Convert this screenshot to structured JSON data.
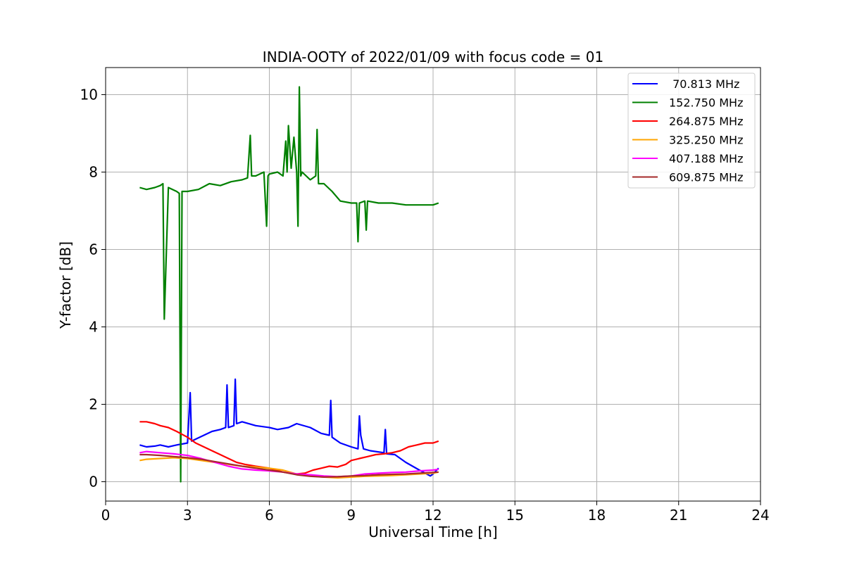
{
  "chart_data": {
    "type": "line",
    "title": "INDIA-OOTY of 2022/01/09 with focus code = 01",
    "xlabel": "Universal Time [h]",
    "ylabel": "Y-factor [dB]",
    "xlim": [
      0,
      24
    ],
    "ylim": [
      -0.5,
      10.7
    ],
    "xticks": [
      0,
      3,
      6,
      9,
      12,
      15,
      18,
      21,
      24
    ],
    "yticks": [
      0,
      2,
      4,
      6,
      8,
      10
    ],
    "grid": true,
    "legend_position": "top-right",
    "series": [
      {
        "name": " 70.813 MHz",
        "color": "#0000ff",
        "x": [
          1.25,
          1.5,
          1.8,
          2.0,
          2.3,
          2.6,
          3.0,
          3.1,
          3.15,
          3.3,
          3.6,
          3.9,
          4.2,
          4.4,
          4.45,
          4.5,
          4.7,
          4.75,
          4.8,
          5.0,
          5.5,
          6.0,
          6.3,
          6.7,
          7.0,
          7.5,
          7.9,
          8.2,
          8.25,
          8.3,
          8.6,
          9.0,
          9.25,
          9.3,
          9.35,
          9.45,
          9.7,
          10.2,
          10.25,
          10.3,
          10.6,
          11.0,
          11.5,
          11.9,
          12.0,
          12.2
        ],
        "y": [
          0.95,
          0.9,
          0.92,
          0.95,
          0.9,
          0.95,
          1.0,
          2.3,
          1.05,
          1.1,
          1.2,
          1.3,
          1.35,
          1.4,
          2.5,
          1.4,
          1.45,
          2.65,
          1.5,
          1.55,
          1.45,
          1.4,
          1.35,
          1.4,
          1.5,
          1.4,
          1.25,
          1.2,
          2.1,
          1.15,
          1.0,
          0.9,
          0.85,
          1.7,
          1.2,
          0.85,
          0.8,
          0.75,
          1.35,
          0.72,
          0.7,
          0.5,
          0.3,
          0.15,
          0.2,
          0.35
        ]
      },
      {
        "name": "152.750 MHz",
        "color": "#008000",
        "x": [
          1.25,
          1.5,
          1.8,
          2.0,
          2.1,
          2.15,
          2.3,
          2.6,
          2.7,
          2.75,
          2.8,
          3.0,
          3.4,
          3.8,
          4.2,
          4.6,
          5.0,
          5.2,
          5.3,
          5.35,
          5.5,
          5.8,
          5.9,
          5.95,
          6.0,
          6.3,
          6.5,
          6.6,
          6.65,
          6.7,
          6.8,
          6.9,
          7.0,
          7.05,
          7.1,
          7.15,
          7.2,
          7.5,
          7.7,
          7.75,
          7.8,
          8.0,
          8.3,
          8.6,
          9.0,
          9.2,
          9.25,
          9.3,
          9.5,
          9.55,
          9.6,
          10.0,
          10.5,
          11.0,
          11.5,
          12.0,
          12.2
        ],
        "y": [
          7.6,
          7.55,
          7.6,
          7.65,
          7.7,
          4.2,
          7.6,
          7.5,
          7.45,
          0.0,
          7.5,
          7.5,
          7.55,
          7.7,
          7.65,
          7.75,
          7.8,
          7.85,
          8.95,
          7.9,
          7.9,
          8.0,
          6.6,
          7.9,
          7.95,
          8.0,
          7.9,
          8.8,
          8.0,
          9.2,
          8.1,
          8.9,
          8.0,
          6.6,
          10.2,
          7.9,
          8.0,
          7.8,
          7.9,
          9.1,
          7.7,
          7.7,
          7.5,
          7.25,
          7.2,
          7.2,
          6.2,
          7.2,
          7.25,
          6.5,
          7.25,
          7.2,
          7.2,
          7.15,
          7.15,
          7.15,
          7.2
        ]
      },
      {
        "name": "264.875 MHz",
        "color": "#ff0000",
        "x": [
          1.25,
          1.5,
          1.8,
          2.0,
          2.3,
          2.6,
          3.0,
          3.3,
          3.6,
          3.9,
          4.2,
          4.5,
          4.8,
          5.1,
          5.5,
          6.0,
          6.5,
          7.0,
          7.3,
          7.6,
          7.9,
          8.2,
          8.5,
          8.8,
          9.0,
          9.3,
          9.6,
          9.9,
          10.2,
          10.5,
          10.8,
          11.1,
          11.4,
          11.7,
          12.0,
          12.2
        ],
        "y": [
          1.55,
          1.55,
          1.5,
          1.45,
          1.4,
          1.3,
          1.15,
          1.0,
          0.9,
          0.8,
          0.7,
          0.6,
          0.5,
          0.45,
          0.4,
          0.35,
          0.25,
          0.2,
          0.22,
          0.3,
          0.35,
          0.4,
          0.38,
          0.45,
          0.55,
          0.6,
          0.65,
          0.7,
          0.72,
          0.75,
          0.8,
          0.9,
          0.95,
          1.0,
          1.0,
          1.05
        ]
      },
      {
        "name": "325.250 MHz",
        "color": "#ffa500",
        "x": [
          1.25,
          1.5,
          2.0,
          2.5,
          3.0,
          3.5,
          4.0,
          4.5,
          5.0,
          5.5,
          6.0,
          6.5,
          7.0,
          7.5,
          8.0,
          8.5,
          9.0,
          9.5,
          10.0,
          10.5,
          11.0,
          11.5,
          12.0,
          12.2
        ],
        "y": [
          0.55,
          0.58,
          0.6,
          0.62,
          0.6,
          0.55,
          0.5,
          0.45,
          0.4,
          0.38,
          0.35,
          0.3,
          0.2,
          0.15,
          0.12,
          0.1,
          0.12,
          0.14,
          0.15,
          0.16,
          0.18,
          0.2,
          0.22,
          0.25
        ]
      },
      {
        "name": "407.188 MHz",
        "color": "#ff00ff",
        "x": [
          1.25,
          1.5,
          2.0,
          2.5,
          3.0,
          3.5,
          4.0,
          4.5,
          5.0,
          5.5,
          6.0,
          6.5,
          7.0,
          7.5,
          8.0,
          8.5,
          9.0,
          9.5,
          10.0,
          10.5,
          11.0,
          11.5,
          12.0,
          12.2
        ],
        "y": [
          0.75,
          0.78,
          0.75,
          0.72,
          0.68,
          0.6,
          0.5,
          0.4,
          0.33,
          0.3,
          0.28,
          0.25,
          0.2,
          0.18,
          0.15,
          0.13,
          0.15,
          0.2,
          0.22,
          0.24,
          0.25,
          0.28,
          0.3,
          0.32
        ]
      },
      {
        "name": "609.875 MHz",
        "color": "#a52a2a",
        "x": [
          1.25,
          1.5,
          2.0,
          2.5,
          3.0,
          3.5,
          4.0,
          4.5,
          5.0,
          5.5,
          6.0,
          6.5,
          7.0,
          7.5,
          8.0,
          8.5,
          9.0,
          9.5,
          10.0,
          10.5,
          11.0,
          11.5,
          12.0,
          12.2
        ],
        "y": [
          0.7,
          0.7,
          0.68,
          0.65,
          0.62,
          0.58,
          0.52,
          0.46,
          0.4,
          0.35,
          0.3,
          0.25,
          0.18,
          0.14,
          0.12,
          0.13,
          0.15,
          0.16,
          0.18,
          0.19,
          0.2,
          0.22,
          0.24,
          0.25
        ]
      }
    ]
  }
}
